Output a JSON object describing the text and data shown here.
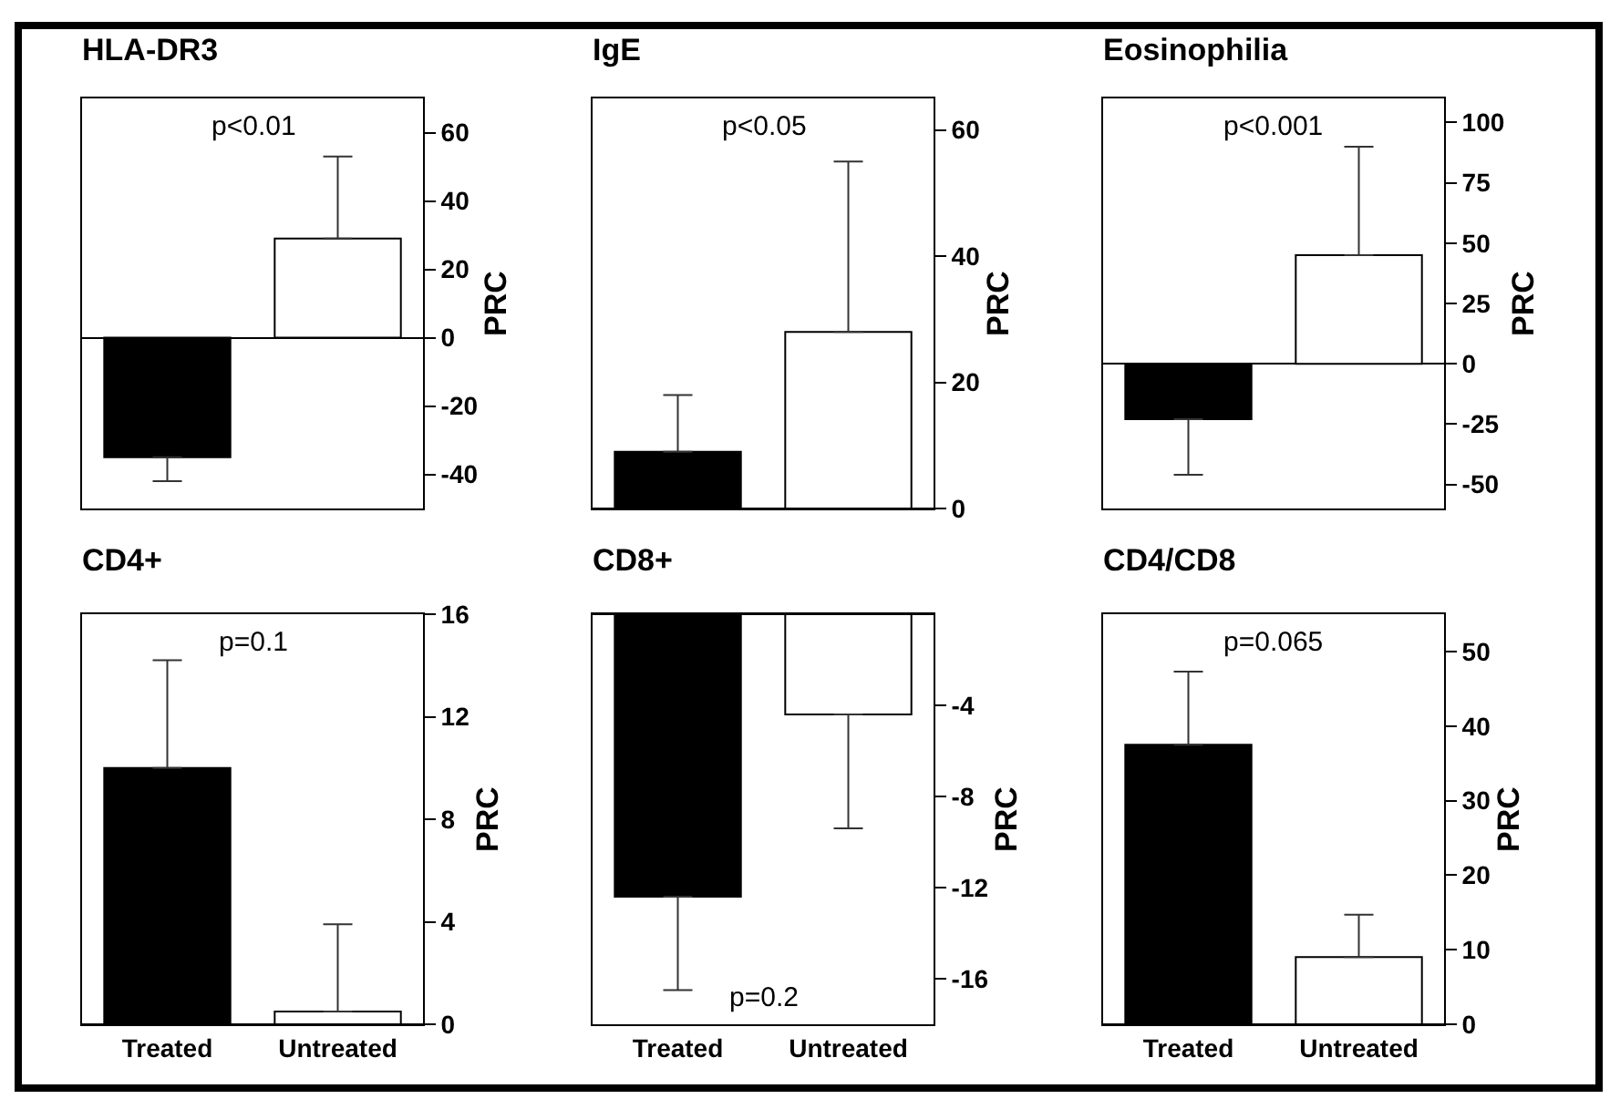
{
  "chart_data": [
    {
      "type": "bar",
      "title": "HLA-DR3",
      "categories": [
        null,
        null
      ],
      "values": [
        -35,
        29
      ],
      "colors": [
        "#000000",
        "#ffffff"
      ],
      "errors": [
        [
          -42,
          -35
        ],
        [
          29,
          53
        ]
      ],
      "ylim": [
        -50,
        70
      ],
      "yticks": [
        -40,
        -20,
        0,
        20,
        40,
        60
      ],
      "ylabel": "PRC",
      "annotations": [
        "p<0.01"
      ],
      "tick_labels": "y"
    },
    {
      "type": "bar",
      "title": "IgE",
      "categories": [
        null,
        null
      ],
      "values": [
        9,
        28
      ],
      "colors": [
        "#000000",
        "#ffffff"
      ],
      "errors": [
        [
          9,
          18
        ],
        [
          28,
          55
        ]
      ],
      "ylim": [
        0,
        65
      ],
      "yticks": [
        0,
        20,
        40,
        60
      ],
      "ylabel": "PRC",
      "annotations": [
        "p<0.05"
      ],
      "tick_labels": "y"
    },
    {
      "type": "bar",
      "title": "Eosinophilia",
      "categories": [
        null,
        null
      ],
      "values": [
        -23,
        45
      ],
      "colors": [
        "#000000",
        "#ffffff"
      ],
      "errors": [
        [
          -46,
          -23
        ],
        [
          45,
          90
        ]
      ],
      "ylim": [
        -60,
        110
      ],
      "yticks": [
        -50,
        -25,
        0,
        25,
        50,
        75,
        100
      ],
      "ylabel": "PRC",
      "annotations": [
        "p<0.001"
      ],
      "tick_labels": "y"
    },
    {
      "type": "bar",
      "title": "CD4+",
      "categories": [
        "Treated",
        "Untreated"
      ],
      "values": [
        10,
        0.5
      ],
      "colors": [
        "#000000",
        "#ffffff"
      ],
      "errors": [
        [
          10,
          14.2
        ],
        [
          0.5,
          3.9
        ]
      ],
      "ylim": [
        0,
        16
      ],
      "yticks": [
        0,
        4,
        8,
        12,
        16
      ],
      "ylabel": "PRC",
      "annotations": [
        "p=0.1"
      ]
    },
    {
      "type": "bar",
      "title": "CD8+",
      "categories": [
        "Treated",
        "Untreated"
      ],
      "values": [
        -12.4,
        -4.4
      ],
      "colors": [
        "#000000",
        "#ffffff"
      ],
      "errors": [
        [
          -16.5,
          -12.4
        ],
        [
          -9.4,
          -4.4
        ]
      ],
      "ylim": [
        -18,
        0
      ],
      "yticks": [
        -16,
        -12,
        -8,
        -4
      ],
      "ylabel": "PRC",
      "annotations": [
        "p=0.2"
      ]
    },
    {
      "type": "bar",
      "title": "CD4/CD8",
      "categories": [
        "Treated",
        "Untreated"
      ],
      "values": [
        37.5,
        9
      ],
      "colors": [
        "#000000",
        "#ffffff"
      ],
      "errors": [
        [
          37.5,
          47.3
        ],
        [
          9,
          14.7
        ]
      ],
      "ylim": [
        0,
        55
      ],
      "yticks": [
        0,
        10,
        20,
        30,
        40,
        50
      ],
      "ylabel": "PRC",
      "annotations": [
        "p=0.065"
      ]
    }
  ]
}
